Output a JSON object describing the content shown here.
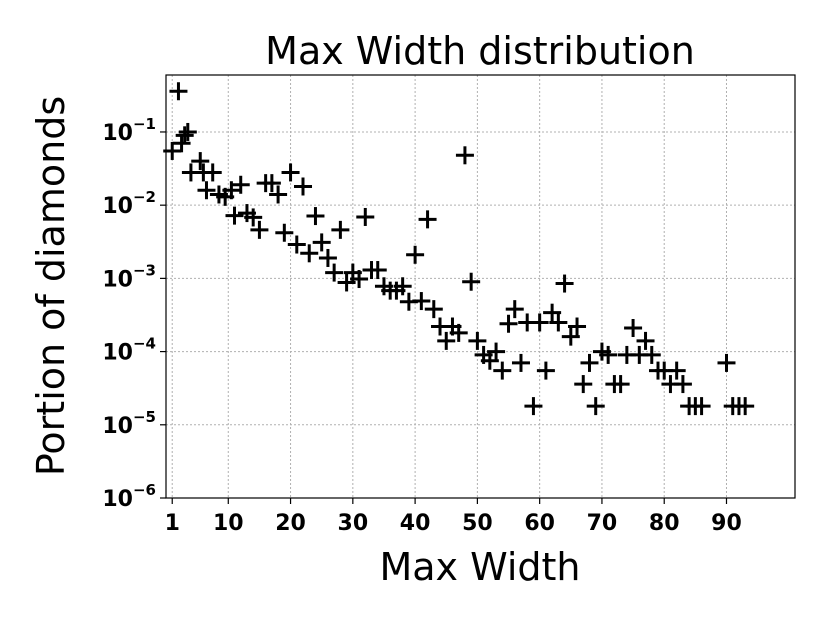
{
  "chart_data": {
    "type": "scatter",
    "title": "Max Width distribution",
    "xlabel": "Max Width",
    "ylabel": "Portion of diamonds",
    "xlim": [
      0,
      101
    ],
    "ylim": [
      1e-06,
      0.6
    ],
    "yscale": "log",
    "grid": true,
    "marker": "plus",
    "color": "#000000",
    "x_ticks": [
      {
        "value": 1,
        "label": "1"
      },
      {
        "value": 10,
        "label": "10"
      },
      {
        "value": 20,
        "label": "20"
      },
      {
        "value": 30,
        "label": "30"
      },
      {
        "value": 40,
        "label": "40"
      },
      {
        "value": 50,
        "label": "50"
      },
      {
        "value": 60,
        "label": "60"
      },
      {
        "value": 70,
        "label": "70"
      },
      {
        "value": 80,
        "label": "80"
      },
      {
        "value": 90,
        "label": "90"
      }
    ],
    "y_ticks": [
      {
        "value": 1e-06,
        "base": "10",
        "exp": "−6"
      },
      {
        "value": 1e-05,
        "base": "10",
        "exp": "−5"
      },
      {
        "value": 0.0001,
        "base": "10",
        "exp": "−4"
      },
      {
        "value": 0.001,
        "base": "10",
        "exp": "−3"
      },
      {
        "value": 0.01,
        "base": "10",
        "exp": "−2"
      },
      {
        "value": 0.1,
        "base": "10",
        "exp": "−1"
      }
    ],
    "points": [
      [
        1,
        0.055
      ],
      [
        2,
        0.36
      ],
      [
        2.5,
        0.07
      ],
      [
        3,
        0.09
      ],
      [
        3.5,
        0.1
      ],
      [
        4,
        0.028
      ],
      [
        5.5,
        0.04
      ],
      [
        6,
        0.028
      ],
      [
        6.5,
        0.016
      ],
      [
        7.5,
        0.028
      ],
      [
        8.5,
        0.014
      ],
      [
        9.5,
        0.013
      ],
      [
        10.5,
        0.016
      ],
      [
        11,
        0.0072
      ],
      [
        12,
        0.019
      ],
      [
        13,
        0.0078
      ],
      [
        14,
        0.0068
      ],
      [
        15,
        0.0046
      ],
      [
        16,
        0.02
      ],
      [
        17,
        0.02
      ],
      [
        18,
        0.014
      ],
      [
        19,
        0.0042
      ],
      [
        20,
        0.028
      ],
      [
        21,
        0.0029
      ],
      [
        22,
        0.018
      ],
      [
        23,
        0.0022
      ],
      [
        24,
        0.0071
      ],
      [
        25,
        0.0031
      ],
      [
        26,
        0.0019
      ],
      [
        27,
        0.0012
      ],
      [
        28,
        0.0046
      ],
      [
        29,
        0.00088
      ],
      [
        30,
        0.0012
      ],
      [
        31,
        0.00098
      ],
      [
        32,
        0.0069
      ],
      [
        33,
        0.0013
      ],
      [
        34,
        0.0013
      ],
      [
        35,
        0.00078
      ],
      [
        36,
        0.00068
      ],
      [
        37,
        0.00068
      ],
      [
        38,
        0.00078
      ],
      [
        39,
        0.00048
      ],
      [
        40,
        0.0021
      ],
      [
        41,
        0.00049
      ],
      [
        42,
        0.0064
      ],
      [
        43,
        0.00038
      ],
      [
        44,
        0.00022
      ],
      [
        45,
        0.00014
      ],
      [
        46,
        0.00022
      ],
      [
        47,
        0.00018
      ],
      [
        48,
        0.048
      ],
      [
        49,
        0.0009
      ],
      [
        50,
        0.00014
      ],
      [
        51,
        9e-05
      ],
      [
        52,
        7.5e-05
      ],
      [
        53,
        0.0001
      ],
      [
        54,
        5.5e-05
      ],
      [
        55,
        0.00024
      ],
      [
        56,
        0.00038
      ],
      [
        57,
        7e-05
      ],
      [
        58,
        0.00025
      ],
      [
        59,
        1.8e-05
      ],
      [
        60,
        0.00025
      ],
      [
        61,
        5.5e-05
      ],
      [
        62,
        0.00034
      ],
      [
        63,
        0.00025
      ],
      [
        64,
        0.00085
      ],
      [
        65,
        0.00016
      ],
      [
        66,
        0.00022
      ],
      [
        67,
        3.6e-05
      ],
      [
        68,
        7e-05
      ],
      [
        69,
        1.8e-05
      ],
      [
        70,
        0.0001
      ],
      [
        71,
        9e-05
      ],
      [
        72,
        3.6e-05
      ],
      [
        73,
        3.6e-05
      ],
      [
        74,
        9e-05
      ],
      [
        75,
        0.00021
      ],
      [
        76,
        9e-05
      ],
      [
        77,
        0.00014
      ],
      [
        78,
        9e-05
      ],
      [
        79,
        5.5e-05
      ],
      [
        80,
        5.5e-05
      ],
      [
        81,
        3.6e-05
      ],
      [
        82,
        5.5e-05
      ],
      [
        83,
        3.6e-05
      ],
      [
        84,
        1.8e-05
      ],
      [
        85,
        1.8e-05
      ],
      [
        86,
        1.8e-05
      ],
      [
        90,
        7e-05
      ],
      [
        91,
        1.8e-05
      ],
      [
        92,
        1.8e-05
      ],
      [
        93,
        1.8e-05
      ]
    ]
  }
}
